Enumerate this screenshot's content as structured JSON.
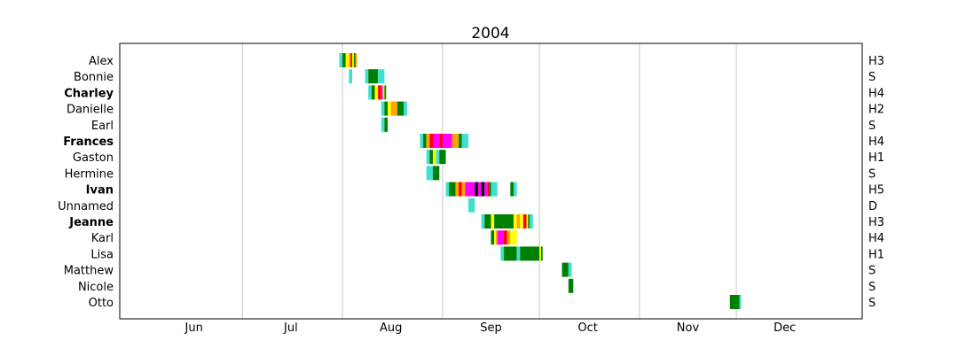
{
  "chart_data": {
    "type": "timeline",
    "title": "2004",
    "xlabel": "",
    "ylabel": "",
    "grid": "vertical month lines",
    "x_range": [
      "2004-06-01",
      "2004-12-31"
    ],
    "months": [
      "Jun",
      "Jul",
      "Aug",
      "Sep",
      "Oct",
      "Nov",
      "Dec"
    ],
    "category_colors": {
      "D": "#40E0D0",
      "S": "#008000",
      "H1": "#FFFF00",
      "H2": "#FFA500",
      "H3": "#FF0000",
      "H4": "#FF00FF",
      "H5": "#000000"
    },
    "storms": [
      {
        "name": "Alex",
        "bold": false,
        "max": "H3",
        "segments": [
          {
            "start": "2004-07-31",
            "end": "2004-08-01",
            "cat": "D"
          },
          {
            "start": "2004-08-01",
            "end": "2004-08-02",
            "cat": "S"
          },
          {
            "start": "2004-08-02",
            "end": "2004-08-03",
            "cat": "H1"
          },
          {
            "start": "2004-08-03",
            "end": "2004-08-03.5",
            "cat": "H2"
          },
          {
            "start": "2004-08-03.5",
            "end": "2004-08-04",
            "cat": "H3"
          },
          {
            "start": "2004-08-04",
            "end": "2004-08-04.5",
            "cat": "H1"
          },
          {
            "start": "2004-08-04.5",
            "end": "2004-08-05",
            "cat": "S"
          },
          {
            "start": "2004-08-05",
            "end": "2004-08-05.5",
            "cat": "H2"
          }
        ]
      },
      {
        "name": "Bonnie",
        "bold": false,
        "max": "S",
        "segments": [
          {
            "start": "2004-08-03",
            "end": "2004-08-04",
            "cat": "D"
          },
          {
            "start": "2004-08-08",
            "end": "2004-08-09",
            "cat": "D"
          },
          {
            "start": "2004-08-09",
            "end": "2004-08-12",
            "cat": "S"
          },
          {
            "start": "2004-08-12",
            "end": "2004-08-14",
            "cat": "D"
          }
        ]
      },
      {
        "name": "Charley",
        "bold": true,
        "max": "H4",
        "segments": [
          {
            "start": "2004-08-09",
            "end": "2004-08-10",
            "cat": "D"
          },
          {
            "start": "2004-08-10",
            "end": "2004-08-11",
            "cat": "S"
          },
          {
            "start": "2004-08-11",
            "end": "2004-08-12",
            "cat": "H1"
          },
          {
            "start": "2004-08-12",
            "end": "2004-08-13",
            "cat": "H3"
          },
          {
            "start": "2004-08-13",
            "end": "2004-08-13.5",
            "cat": "H4"
          },
          {
            "start": "2004-08-13.5",
            "end": "2004-08-14",
            "cat": "H1"
          },
          {
            "start": "2004-08-14",
            "end": "2004-08-14.5",
            "cat": "S"
          }
        ]
      },
      {
        "name": "Danielle",
        "bold": false,
        "max": "H2",
        "segments": [
          {
            "start": "2004-08-13",
            "end": "2004-08-14",
            "cat": "D"
          },
          {
            "start": "2004-08-14",
            "end": "2004-08-15",
            "cat": "S"
          },
          {
            "start": "2004-08-15",
            "end": "2004-08-16",
            "cat": "H1"
          },
          {
            "start": "2004-08-16",
            "end": "2004-08-18",
            "cat": "H2"
          },
          {
            "start": "2004-08-18",
            "end": "2004-08-20",
            "cat": "S"
          },
          {
            "start": "2004-08-20",
            "end": "2004-08-21",
            "cat": "D"
          }
        ]
      },
      {
        "name": "Earl",
        "bold": false,
        "max": "S",
        "segments": [
          {
            "start": "2004-08-13",
            "end": "2004-08-14",
            "cat": "D"
          },
          {
            "start": "2004-08-14",
            "end": "2004-08-15",
            "cat": "S"
          }
        ]
      },
      {
        "name": "Frances",
        "bold": true,
        "max": "H4",
        "segments": [
          {
            "start": "2004-08-25",
            "end": "2004-08-26",
            "cat": "D"
          },
          {
            "start": "2004-08-26",
            "end": "2004-08-27",
            "cat": "S"
          },
          {
            "start": "2004-08-27",
            "end": "2004-08-28",
            "cat": "H2"
          },
          {
            "start": "2004-08-28",
            "end": "2004-08-29",
            "cat": "H3"
          },
          {
            "start": "2004-08-29",
            "end": "2004-08-31",
            "cat": "H4"
          },
          {
            "start": "2004-08-31",
            "end": "2004-09-01",
            "cat": "H3"
          },
          {
            "start": "2004-09-01",
            "end": "2004-09-04",
            "cat": "H4"
          },
          {
            "start": "2004-09-04",
            "end": "2004-09-06",
            "cat": "H2"
          },
          {
            "start": "2004-09-06",
            "end": "2004-09-07",
            "cat": "S"
          },
          {
            "start": "2004-09-07",
            "end": "2004-09-09",
            "cat": "D"
          }
        ]
      },
      {
        "name": "Gaston",
        "bold": false,
        "max": "H1",
        "segments": [
          {
            "start": "2004-08-27",
            "end": "2004-08-28",
            "cat": "D"
          },
          {
            "start": "2004-08-28",
            "end": "2004-08-29",
            "cat": "S"
          },
          {
            "start": "2004-08-29",
            "end": "2004-08-30",
            "cat": "H1"
          },
          {
            "start": "2004-08-30",
            "end": "2004-08-31",
            "cat": "D"
          },
          {
            "start": "2004-08-31",
            "end": "2004-09-02",
            "cat": "S"
          }
        ]
      },
      {
        "name": "Hermine",
        "bold": false,
        "max": "S",
        "segments": [
          {
            "start": "2004-08-27",
            "end": "2004-08-29",
            "cat": "D"
          },
          {
            "start": "2004-08-29",
            "end": "2004-08-31",
            "cat": "S"
          }
        ]
      },
      {
        "name": "Ivan",
        "bold": true,
        "max": "H5",
        "segments": [
          {
            "start": "2004-09-02",
            "end": "2004-09-03",
            "cat": "D"
          },
          {
            "start": "2004-09-03",
            "end": "2004-09-05",
            "cat": "S"
          },
          {
            "start": "2004-09-05",
            "end": "2004-09-06",
            "cat": "H2"
          },
          {
            "start": "2004-09-06",
            "end": "2004-09-07",
            "cat": "H3"
          },
          {
            "start": "2004-09-07",
            "end": "2004-09-08",
            "cat": "H2"
          },
          {
            "start": "2004-09-08",
            "end": "2004-09-11",
            "cat": "H4"
          },
          {
            "start": "2004-09-11",
            "end": "2004-09-12",
            "cat": "H5"
          },
          {
            "start": "2004-09-12",
            "end": "2004-09-13",
            "cat": "H4"
          },
          {
            "start": "2004-09-13",
            "end": "2004-09-14",
            "cat": "H5"
          },
          {
            "start": "2004-09-14",
            "end": "2004-09-15",
            "cat": "H4"
          },
          {
            "start": "2004-09-15",
            "end": "2004-09-15.5",
            "cat": "H3"
          },
          {
            "start": "2004-09-15.5",
            "end": "2004-09-16",
            "cat": "S"
          },
          {
            "start": "2004-09-16",
            "end": "2004-09-18",
            "cat": "D"
          },
          {
            "start": "2004-09-22",
            "end": "2004-09-23",
            "cat": "S"
          },
          {
            "start": "2004-09-23",
            "end": "2004-09-24",
            "cat": "D"
          }
        ]
      },
      {
        "name": "Unnamed",
        "bold": false,
        "max": "D",
        "segments": [
          {
            "start": "2004-09-09",
            "end": "2004-09-11",
            "cat": "D"
          }
        ]
      },
      {
        "name": "Jeanne",
        "bold": true,
        "max": "H3",
        "segments": [
          {
            "start": "2004-09-13",
            "end": "2004-09-14",
            "cat": "D"
          },
          {
            "start": "2004-09-14",
            "end": "2004-09-16",
            "cat": "S"
          },
          {
            "start": "2004-09-16",
            "end": "2004-09-17",
            "cat": "H1"
          },
          {
            "start": "2004-09-17",
            "end": "2004-09-23",
            "cat": "S"
          },
          {
            "start": "2004-09-23",
            "end": "2004-09-24",
            "cat": "H1"
          },
          {
            "start": "2004-09-24",
            "end": "2004-09-25",
            "cat": "H2"
          },
          {
            "start": "2004-09-25",
            "end": "2004-09-26",
            "cat": "H1"
          },
          {
            "start": "2004-09-26",
            "end": "2004-09-27",
            "cat": "H3"
          },
          {
            "start": "2004-09-27",
            "end": "2004-09-27.5",
            "cat": "H1"
          },
          {
            "start": "2004-09-27.5",
            "end": "2004-09-28",
            "cat": "S"
          },
          {
            "start": "2004-09-28",
            "end": "2004-09-29",
            "cat": "D"
          }
        ]
      },
      {
        "name": "Karl",
        "bold": false,
        "max": "H4",
        "segments": [
          {
            "start": "2004-09-16",
            "end": "2004-09-17",
            "cat": "S"
          },
          {
            "start": "2004-09-17",
            "end": "2004-09-17.5",
            "cat": "H1"
          },
          {
            "start": "2004-09-17.5",
            "end": "2004-09-18",
            "cat": "H2"
          },
          {
            "start": "2004-09-18",
            "end": "2004-09-20",
            "cat": "H4"
          },
          {
            "start": "2004-09-20",
            "end": "2004-09-21",
            "cat": "H3"
          },
          {
            "start": "2004-09-21",
            "end": "2004-09-22",
            "cat": "H2"
          },
          {
            "start": "2004-09-22",
            "end": "2004-09-24",
            "cat": "H1"
          }
        ]
      },
      {
        "name": "Lisa",
        "bold": false,
        "max": "H1",
        "segments": [
          {
            "start": "2004-09-19",
            "end": "2004-09-20",
            "cat": "D"
          },
          {
            "start": "2004-09-20",
            "end": "2004-09-24",
            "cat": "S"
          },
          {
            "start": "2004-09-24",
            "end": "2004-09-25",
            "cat": "D"
          },
          {
            "start": "2004-09-25",
            "end": "2004-10-01",
            "cat": "S"
          },
          {
            "start": "2004-10-01",
            "end": "2004-10-01.5",
            "cat": "H1"
          },
          {
            "start": "2004-10-01.5",
            "end": "2004-10-02",
            "cat": "S"
          }
        ]
      },
      {
        "name": "Matthew",
        "bold": false,
        "max": "S",
        "segments": [
          {
            "start": "2004-10-08",
            "end": "2004-10-10",
            "cat": "S"
          },
          {
            "start": "2004-10-10",
            "end": "2004-10-11",
            "cat": "D"
          }
        ]
      },
      {
        "name": "Nicole",
        "bold": false,
        "max": "S",
        "segments": [
          {
            "start": "2004-10-10",
            "end": "2004-10-11.5",
            "cat": "S"
          }
        ]
      },
      {
        "name": "Otto",
        "bold": false,
        "max": "S",
        "segments": [
          {
            "start": "2004-11-29",
            "end": "2004-12-02",
            "cat": "S"
          },
          {
            "start": "2004-12-02",
            "end": "2004-12-02.5",
            "cat": "D"
          }
        ]
      }
    ]
  }
}
